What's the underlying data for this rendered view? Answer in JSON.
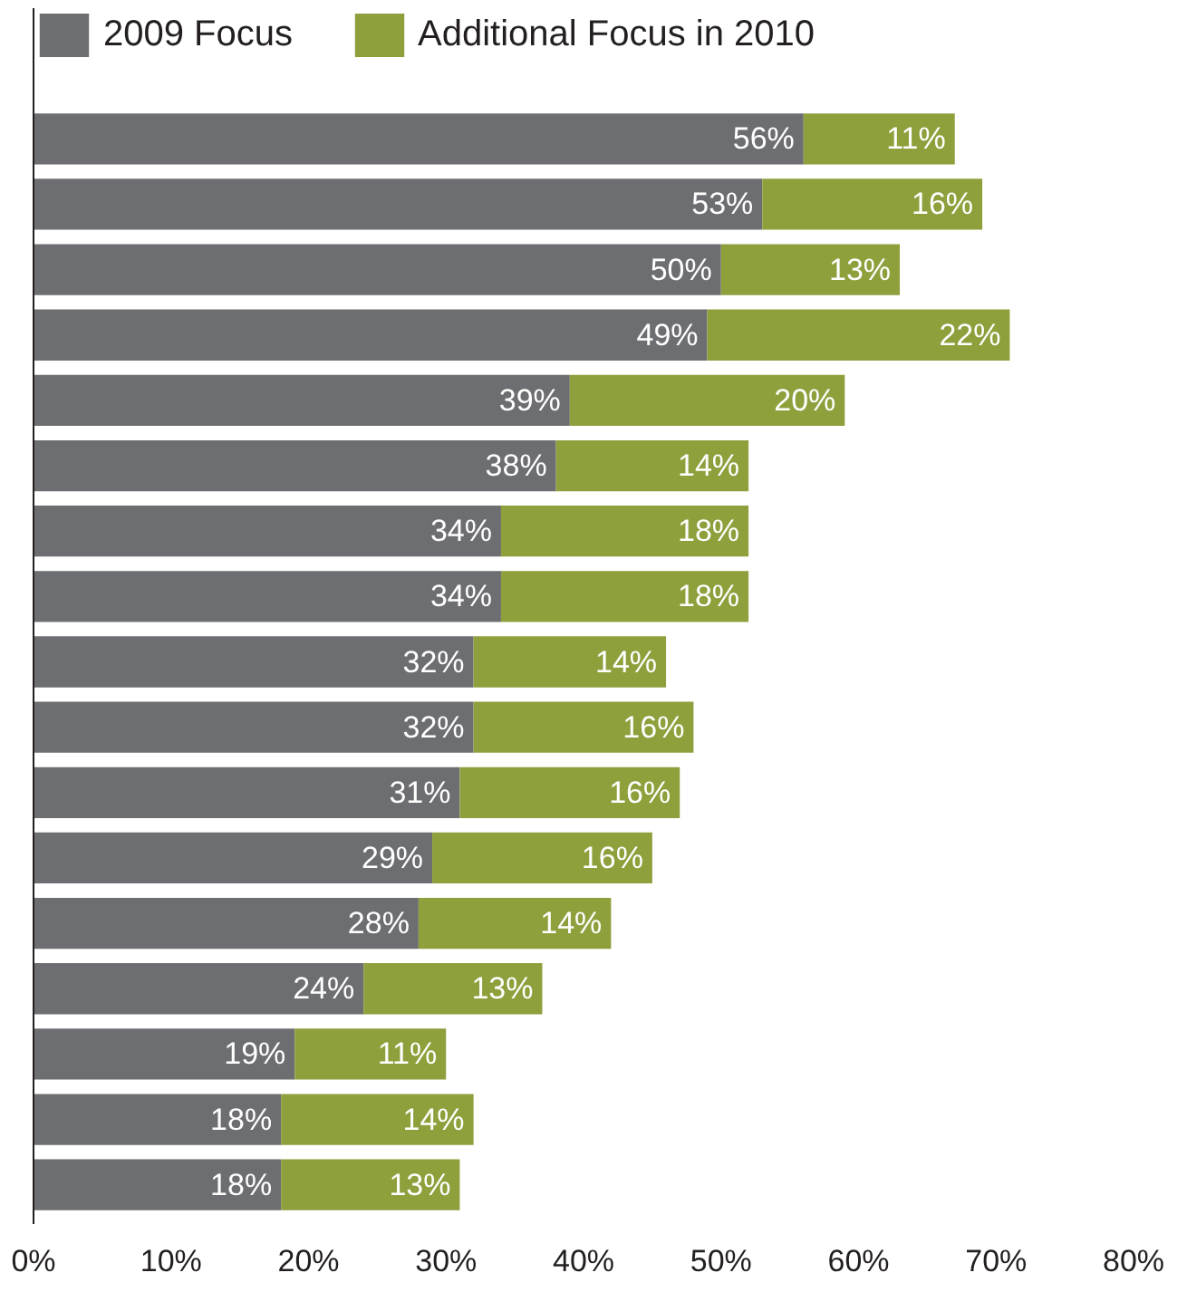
{
  "chart_data": {
    "type": "bar",
    "orientation": "horizontal",
    "stacked": true,
    "categories": [
      null,
      null,
      null,
      null,
      null,
      null,
      null,
      null,
      null,
      null,
      null,
      null,
      null,
      null,
      null,
      null,
      null
    ],
    "series": [
      {
        "name": "2009 Focus",
        "color": "#6d6e71",
        "values": [
          56,
          53,
          50,
          49,
          39,
          38,
          34,
          34,
          32,
          32,
          31,
          29,
          28,
          24,
          19,
          18,
          18
        ],
        "value_labels": [
          "56%",
          "53%",
          "50%",
          "49%",
          "39%",
          "38%",
          "34%",
          "34%",
          "32%",
          "32%",
          "31%",
          "29%",
          "28%",
          "24%",
          "19%",
          "18%",
          "18%"
        ]
      },
      {
        "name": "Additional Focus in 2010",
        "color": "#8da03c",
        "values": [
          11,
          16,
          13,
          22,
          20,
          14,
          18,
          18,
          14,
          16,
          16,
          16,
          14,
          13,
          11,
          14,
          13
        ],
        "value_labels": [
          "11%",
          "16%",
          "13%",
          "22%",
          "20%",
          "14%",
          "18%",
          "18%",
          "14%",
          "16%",
          "16%",
          "16%",
          "14%",
          "13%",
          "11%",
          "14%",
          "13%"
        ]
      }
    ],
    "xlim": [
      0,
      80
    ],
    "xticks": [
      {
        "value": 0,
        "label": "0%"
      },
      {
        "value": 10,
        "label": "10%"
      },
      {
        "value": 20,
        "label": "20%"
      },
      {
        "value": 30,
        "label": "30%"
      },
      {
        "value": 40,
        "label": "40%"
      },
      {
        "value": 50,
        "label": "50%"
      },
      {
        "value": 60,
        "label": "60%"
      },
      {
        "value": 70,
        "label": "70%"
      },
      {
        "value": 80,
        "label": "80%"
      }
    ],
    "tick_labels": "x",
    "legend": "top",
    "grid": false
  }
}
